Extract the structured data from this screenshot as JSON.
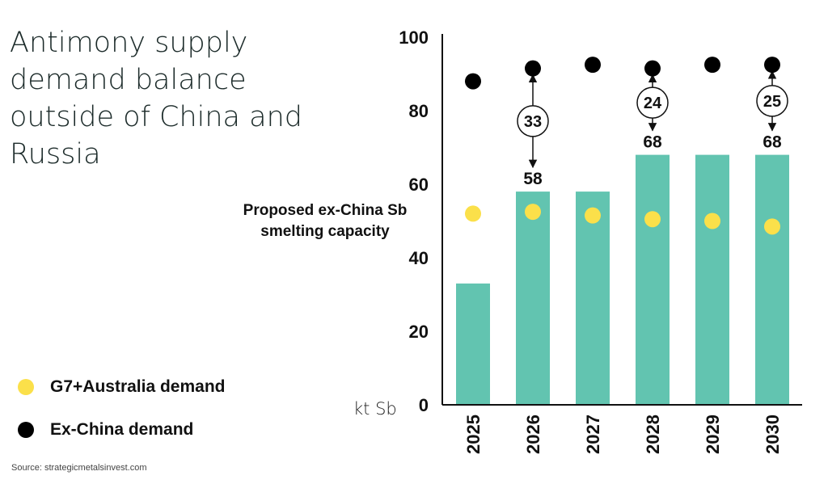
{
  "title": "Antimony supply demand balance outside of China and Russia",
  "legend": {
    "g7": "G7+Australia demand",
    "exchina": "Ex-China demand"
  },
  "source": "Source: strategicmetalsinvest.com",
  "unit_label": "kt Sb",
  "bar_annotation": "Proposed ex-China Sb smelting capacity",
  "colors": {
    "bar": "#62c4b0",
    "g7_dot": "#fbe04a",
    "exchina_dot": "#000000"
  },
  "chart_data": {
    "type": "bar",
    "categories": [
      "2025",
      "2026",
      "2027",
      "2028",
      "2029",
      "2030"
    ],
    "ylim": [
      0,
      100
    ],
    "yticks": [
      0,
      20,
      40,
      60,
      80,
      100
    ],
    "xlabel": "",
    "ylabel": "kt Sb",
    "grid": false,
    "series": [
      {
        "name": "Proposed ex-China Sb smelting capacity",
        "kind": "bar",
        "values": [
          33,
          58,
          58,
          68,
          68,
          68
        ]
      },
      {
        "name": "G7+Australia demand",
        "kind": "dot",
        "values": [
          52,
          52.5,
          51.5,
          50.5,
          50,
          48.5
        ]
      },
      {
        "name": "Ex-China demand",
        "kind": "dot",
        "values": [
          88,
          91.5,
          92.5,
          91.5,
          92.5,
          92.5
        ]
      }
    ],
    "bar_value_labels": [
      {
        "category": "2026",
        "text": "58"
      },
      {
        "category": "2028",
        "text": "68"
      },
      {
        "category": "2030",
        "text": "68"
      }
    ],
    "gap_annotations": [
      {
        "category": "2026",
        "text": "33"
      },
      {
        "category": "2028",
        "text": "24"
      },
      {
        "category": "2030",
        "text": "25"
      }
    ]
  }
}
